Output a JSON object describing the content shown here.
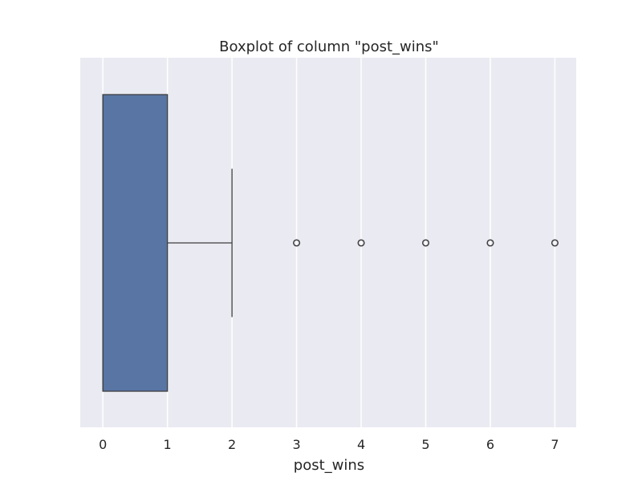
{
  "chart_data": {
    "type": "boxplot",
    "title": "Boxplot of column \"post_wins\"",
    "xlabel": "post_wins",
    "ylabel": "",
    "orientation": "horizontal",
    "xlim": [
      -0.35,
      7.33
    ],
    "xticks": [
      0,
      1,
      2,
      3,
      4,
      5,
      6,
      7
    ],
    "grid": true,
    "box": {
      "whisker_low": 0,
      "q1": 0,
      "median": 0,
      "q3": 1,
      "whisker_high": 2,
      "outliers": [
        3,
        4,
        5,
        6,
        7
      ]
    },
    "colors": {
      "plot_background": "#eaeaf2",
      "grid": "#ffffff",
      "box_fill": "#5875a4",
      "lines": "#3f3f3f"
    }
  }
}
